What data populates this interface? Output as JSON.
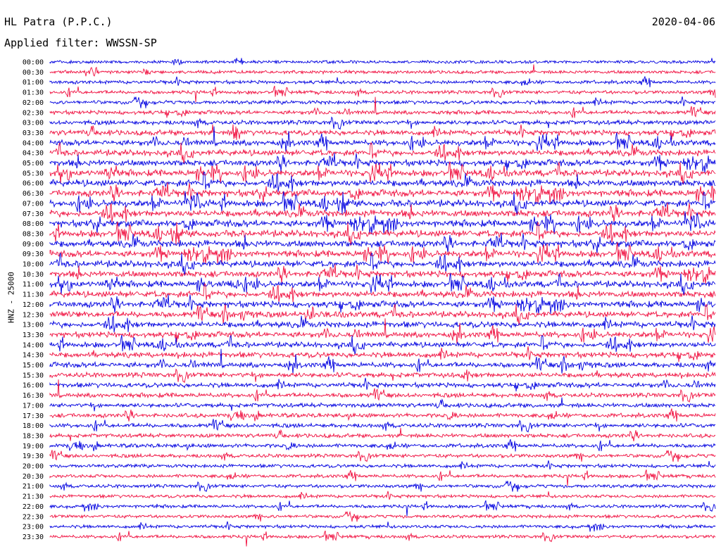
{
  "header": {
    "station": "HL Patra (P.P.C.)",
    "date": "2020-04-06",
    "filter_label": "Applied filter: WWSSN-SP"
  },
  "chart_data": {
    "type": "line",
    "description_of_axis": "",
    "channel_label": "HNZ - 25000",
    "row_labels": [
      "00:00",
      "00:30",
      "01:00",
      "01:30",
      "02:00",
      "02:30",
      "03:00",
      "03:30",
      "04:00",
      "04:30",
      "05:00",
      "05:30",
      "06:00",
      "06:30",
      "07:00",
      "07:30",
      "08:00",
      "08:30",
      "09:00",
      "09:30",
      "10:00",
      "10:30",
      "11:00",
      "11:30",
      "12:00",
      "12:30",
      "13:00",
      "13:30",
      "14:00",
      "14:30",
      "15:00",
      "15:30",
      "16:00",
      "16:30",
      "17:00",
      "17:30",
      "18:00",
      "18:30",
      "19:00",
      "19:30",
      "20:00",
      "20:30",
      "21:00",
      "21:30",
      "22:00",
      "22:30",
      "23:00",
      "23:30"
    ],
    "activity": [
      0.25,
      0.3,
      0.35,
      0.35,
      0.4,
      0.45,
      0.55,
      0.7,
      0.8,
      0.85,
      0.9,
      0.95,
      1.0,
      1.0,
      1.0,
      1.0,
      1.0,
      1.0,
      1.0,
      0.95,
      0.95,
      0.9,
      0.9,
      0.9,
      0.9,
      0.85,
      0.85,
      0.8,
      0.75,
      0.75,
      0.7,
      0.65,
      0.6,
      0.55,
      0.5,
      0.5,
      0.5,
      0.45,
      0.45,
      0.4,
      0.35,
      0.35,
      0.35,
      0.3,
      0.3,
      0.3,
      0.3,
      0.3
    ],
    "series_colors": [
      "#0000e0",
      "#f01040"
    ]
  }
}
